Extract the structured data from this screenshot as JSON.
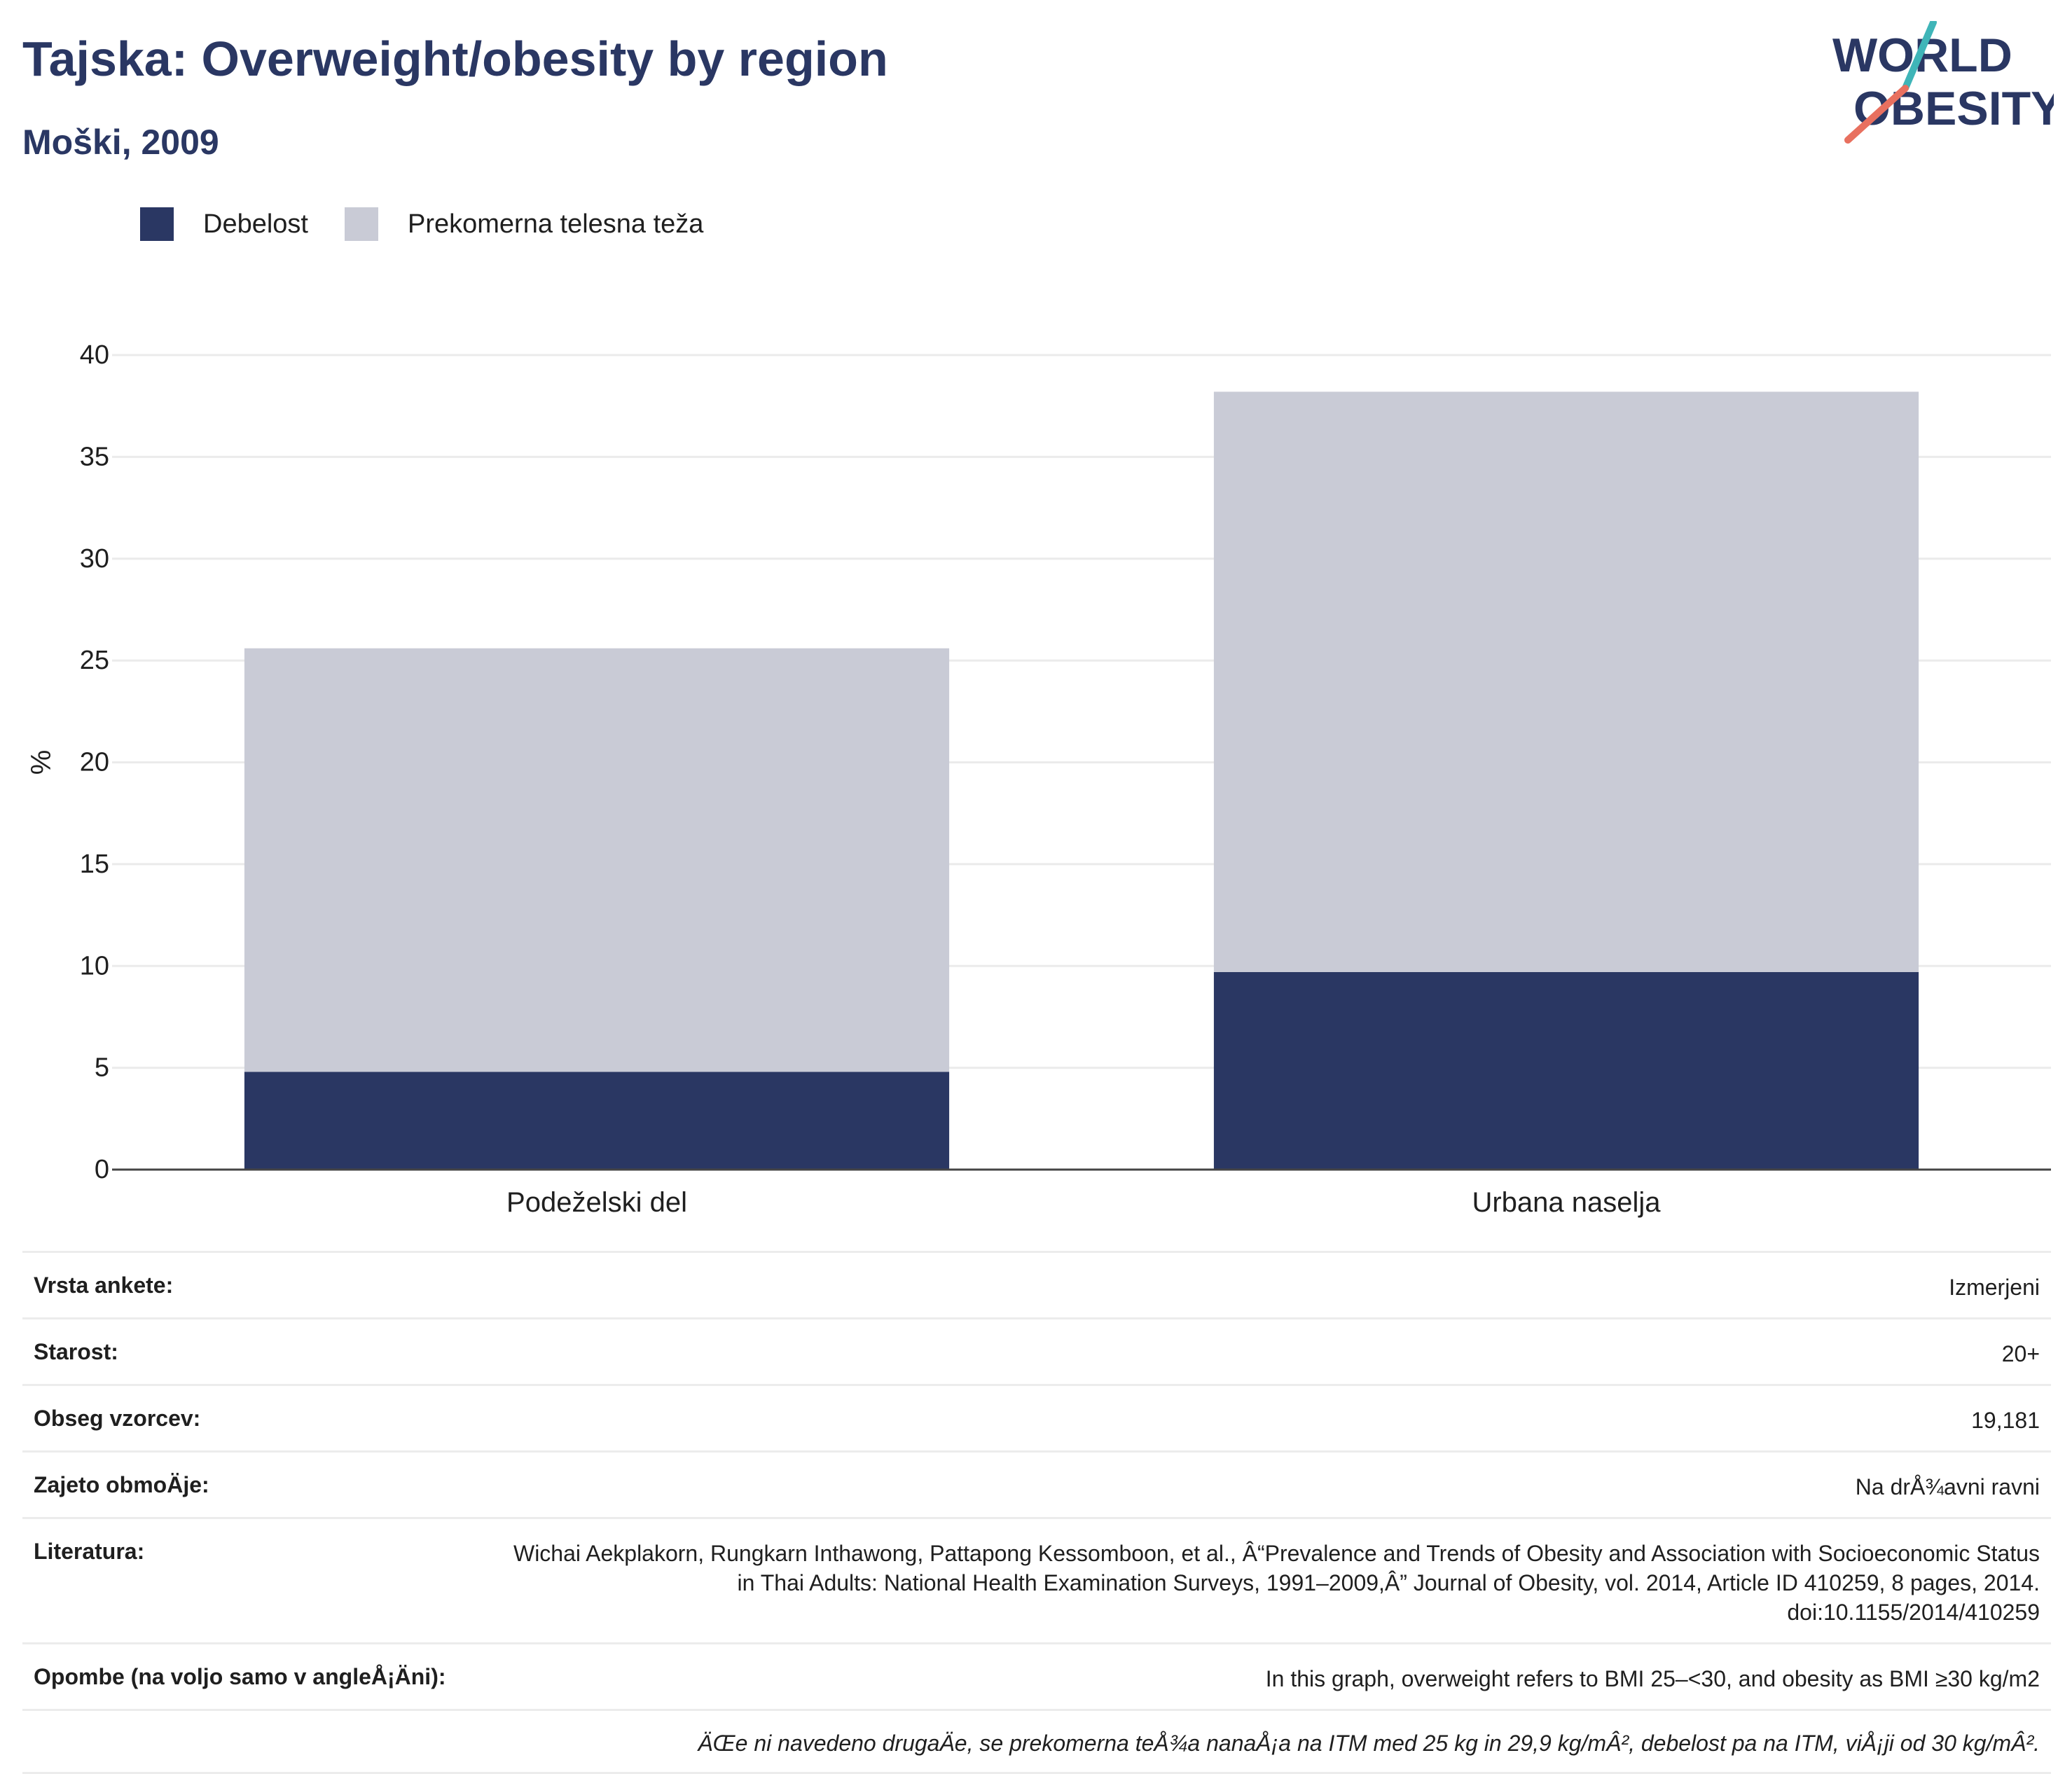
{
  "header": {
    "title": "Tajska: Overweight/obesity by region",
    "subtitle": "Moški, 2009"
  },
  "logo": {
    "line1": "WORLD",
    "line2": "OBESITY"
  },
  "colors": {
    "obesity": "#2a3763",
    "overweight": "#c9cbd6",
    "title": "#2a3763",
    "logo_teal": "#3fb5b8",
    "logo_coral": "#e8705f"
  },
  "chart_data": {
    "type": "bar",
    "stacked": true,
    "categories": [
      "Podeželski del",
      "Urbana naselja"
    ],
    "series": [
      {
        "name": "Debelost",
        "values": [
          4.8,
          9.7
        ]
      },
      {
        "name": "Prekomerna telesna teža",
        "values": [
          20.8,
          28.5
        ]
      }
    ],
    "ylabel": "%",
    "xlabel": "",
    "ylim": [
      0,
      40
    ],
    "yticks": [
      0,
      5,
      10,
      15,
      20,
      25,
      30,
      35,
      40
    ],
    "grid": true,
    "legend_position": "top-left"
  },
  "meta": {
    "rows": [
      {
        "label": "Vrsta ankete:",
        "value": "Izmerjeni"
      },
      {
        "label": "Starost:",
        "value": "20+"
      },
      {
        "label": "Obseg vzorcev:",
        "value": "19,181"
      },
      {
        "label": "Zajeto obmoÄje:",
        "value": "Na drÅ¾avni ravni"
      },
      {
        "label": "Literatura:",
        "value": "Wichai Aekplakorn, Rungkarn Inthawong, Pattapong Kessomboon, et al., Â“Prevalence and Trends of Obesity and Association with Socioeconomic Status in Thai Adults: National Health Examination Surveys, 1991–2009,Â” Journal of Obesity, vol. 2014, Article ID 410259, 8 pages, 2014. doi:10.1155/2014/410259"
      },
      {
        "label": "Opombe (na voljo samo v angleÅ¡Äni):",
        "value": "In this graph, overweight refers to BMI 25–<30, and obesity as BMI ≥30 kg/m2"
      }
    ],
    "note": "ÄŒe ni navedeno drugaÄe, se prekomerna teÅ¾a nanaÅ¡a na ITM med 25 kg in 29,9 kg/mÂ², debelost pa na ITM, viÅ¡ji od 30 kg/mÂ²."
  }
}
